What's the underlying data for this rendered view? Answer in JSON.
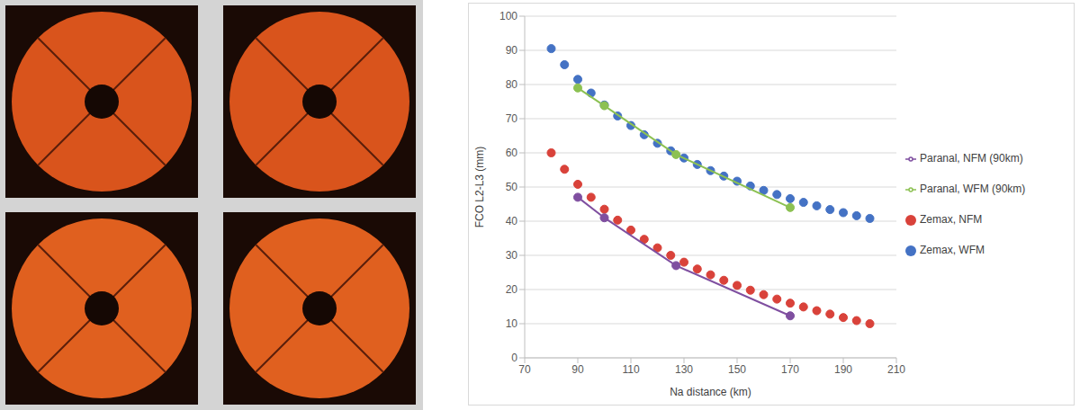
{
  "chart_data": {
    "type": "scatter",
    "x_label": "Na distance (km)",
    "y_label": "FCO L2-L3 (mm)",
    "xlim": [
      70,
      210
    ],
    "xticks": [
      70,
      90,
      110,
      130,
      150,
      170,
      190,
      210
    ],
    "ylim": [
      0,
      100
    ],
    "yticks": [
      0,
      10,
      20,
      30,
      40,
      50,
      60,
      70,
      80,
      90,
      100
    ],
    "grid": true,
    "legend": "right",
    "series": [
      {
        "name": "Zemax, WFM",
        "type": "scatter",
        "marker": "circle",
        "color": "#4472c4",
        "x": [
          80,
          85,
          90,
          95,
          100,
          105,
          110,
          115,
          120,
          125,
          130,
          135,
          140,
          145,
          150,
          155,
          160,
          165,
          170,
          175,
          180,
          185,
          190,
          195,
          200
        ],
        "values": [
          90.5,
          85.8,
          81.5,
          77.5,
          74,
          70.8,
          68,
          65.3,
          62.8,
          60.6,
          58.5,
          56.6,
          54.8,
          53.2,
          51.7,
          50.3,
          49,
          47.8,
          46.6,
          45.5,
          44.5,
          43.4,
          42.5,
          41.6,
          40.8
        ]
      },
      {
        "name": "Zemax, NFM",
        "type": "scatter",
        "marker": "circle",
        "color": "#d9423a",
        "x": [
          80,
          85,
          90,
          95,
          100,
          105,
          110,
          115,
          120,
          125,
          130,
          135,
          140,
          145,
          150,
          155,
          160,
          165,
          170,
          175,
          180,
          185,
          190,
          195,
          200
        ],
        "values": [
          60,
          55.2,
          50.8,
          47,
          43.5,
          40.3,
          37.4,
          34.7,
          32.2,
          30,
          28,
          26,
          24.3,
          22.7,
          21.2,
          19.8,
          18.5,
          17.2,
          16,
          14.9,
          13.8,
          12.8,
          11.8,
          10.9,
          10
        ]
      },
      {
        "name": "Paranal, WFM (90km)",
        "type": "line",
        "marker": "circle",
        "color": "#8cc152",
        "x": [
          90,
          100,
          127,
          170
        ],
        "values": [
          79,
          73.8,
          59.5,
          44
        ]
      },
      {
        "name": "Paranal, NFM (90km)",
        "type": "line",
        "marker": "circle",
        "color": "#7f4fa0",
        "x": [
          90,
          100,
          127,
          170
        ],
        "values": [
          47,
          41,
          27,
          12.3
        ]
      }
    ]
  }
}
